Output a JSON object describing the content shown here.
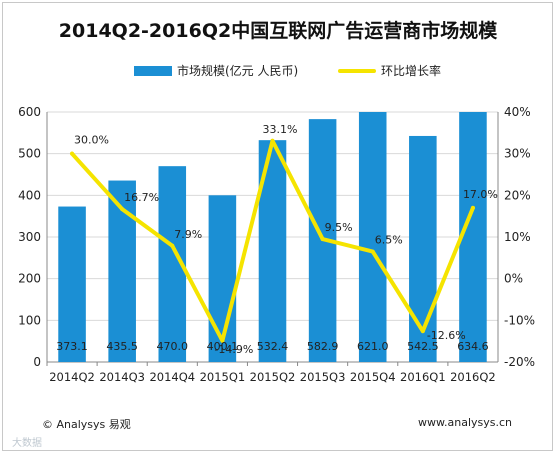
{
  "title": "2014Q2-2016Q2中国互联网广告运营商市场规模",
  "legend": {
    "bar_label": "市场规模(亿元 人民币)",
    "line_label": "环比增长率"
  },
  "footer": {
    "left": "© Analysys 易观",
    "right": "www.analysys.cn",
    "corner": "大数据"
  },
  "colors": {
    "bar": "#1b8fd4",
    "line": "#f5e400",
    "grid": "#d9d9d9",
    "axis_text": "#222222"
  },
  "chart_data": {
    "type": "bar",
    "categories": [
      "2014Q2",
      "2014Q3",
      "2014Q4",
      "2015Q1",
      "2015Q2",
      "2015Q3",
      "2015Q4",
      "2016Q1",
      "2016Q2"
    ],
    "series": [
      {
        "name": "市场规模(亿元 人民币)",
        "type": "bar",
        "axis": "left",
        "values": [
          373.1,
          435.5,
          470.0,
          400.1,
          532.4,
          582.9,
          621.0,
          542.5,
          634.6
        ],
        "labels": [
          "373.1",
          "435.5",
          "470.0",
          "400.1",
          "532.4",
          "582.9",
          "621.0",
          "542.5",
          "634.6"
        ]
      },
      {
        "name": "环比增长率",
        "type": "line",
        "axis": "right",
        "values": [
          30.0,
          16.7,
          7.9,
          -14.9,
          33.1,
          9.5,
          6.5,
          -12.6,
          17.0
        ],
        "labels": [
          "30.0%",
          "16.7%",
          "7.9%",
          "-14.9%",
          "33.1%",
          "9.5%",
          "6.5%",
          "-12.6%",
          "17.0%"
        ]
      }
    ],
    "y_left": {
      "ylim": [
        0,
        600
      ],
      "ticks": [
        "0",
        "100",
        "200",
        "300",
        "400",
        "500",
        "600"
      ],
      "tick_values": [
        0,
        100,
        200,
        300,
        400,
        500,
        600
      ]
    },
    "y_right": {
      "ylim": [
        -20,
        40
      ],
      "ticks": [
        "-20%",
        "-10%",
        "0%",
        "10%",
        "20%",
        "30%",
        "40%"
      ],
      "tick_values": [
        -20,
        -10,
        0,
        10,
        20,
        30,
        40
      ]
    },
    "grid": true,
    "legend_position": "top"
  }
}
